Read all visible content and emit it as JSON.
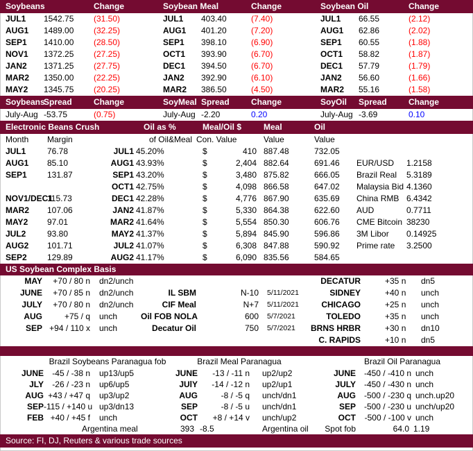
{
  "colors": {
    "maroon": "#740b31",
    "red": "#ff0000",
    "blue": "#0000ff"
  },
  "futures_boards": [
    {
      "title": "Soybeans",
      "change_header": "Change",
      "rows": [
        {
          "m": "JUL1",
          "p": "1542.75",
          "c": "(31.50)"
        },
        {
          "m": "AUG1",
          "p": "1489.00",
          "c": "(32.25)"
        },
        {
          "m": "SEP1",
          "p": "1410.00",
          "c": "(28.50)"
        },
        {
          "m": "NOV1",
          "p": "1372.25",
          "c": "(27.25)"
        },
        {
          "m": "JAN2",
          "p": "1371.25",
          "c": "(27.75)"
        },
        {
          "m": "MAR2",
          "p": "1350.00",
          "c": "(22.25)"
        },
        {
          "m": "MAY2",
          "p": "1345.75",
          "c": "(20.25)"
        }
      ]
    },
    {
      "title": "Soybean Meal",
      "change_header": "Change",
      "rows": [
        {
          "m": "JUL1",
          "p": "403.40",
          "c": "(7.40)"
        },
        {
          "m": "AUG1",
          "p": "401.20",
          "c": "(7.20)"
        },
        {
          "m": "SEP1",
          "p": "398.10",
          "c": "(6.90)"
        },
        {
          "m": "OCT1",
          "p": "393.90",
          "c": "(6.70)"
        },
        {
          "m": "DEC1",
          "p": "394.50",
          "c": "(6.70)"
        },
        {
          "m": "JAN2",
          "p": "392.90",
          "c": "(6.10)"
        },
        {
          "m": "MAR2",
          "p": "386.50",
          "c": "(4.50)"
        }
      ]
    },
    {
      "title": "Soybean Oil",
      "change_header": "Change",
      "rows": [
        {
          "m": "JUL1",
          "p": "66.55",
          "c": "(2.12)"
        },
        {
          "m": "AUG1",
          "p": "62.86",
          "c": "(2.02)"
        },
        {
          "m": "SEP1",
          "p": "60.55",
          "c": "(1.88)"
        },
        {
          "m": "OCT1",
          "p": "58.82",
          "c": "(1.87)"
        },
        {
          "m": "DEC1",
          "p": "57.79",
          "c": "(1.79)"
        },
        {
          "m": "JAN2",
          "p": "56.60",
          "c": "(1.66)"
        },
        {
          "m": "MAR2",
          "p": "55.16",
          "c": "(1.58)"
        }
      ]
    }
  ],
  "spread_boards": [
    {
      "title": "Soybeans",
      "spread_header": "Spread",
      "change_header": "Change",
      "month": "July-Aug",
      "spread": "-53.75",
      "change": "(0.75)",
      "change_class": "red"
    },
    {
      "title": "SoyMeal",
      "spread_header": "Spread",
      "change_header": "Change",
      "month": "July-Aug",
      "spread": "-2.20",
      "change": "0.20",
      "change_class": "blue"
    },
    {
      "title": "SoyOil",
      "spread_header": "Spread",
      "change_header": "Change",
      "month": "July-Aug",
      "spread": "-3.69",
      "change": "0.10",
      "change_class": "blue"
    }
  ],
  "crush": {
    "title": "Electronic Beans Crush",
    "col_headers": {
      "oil_pct": "Oil as %",
      "meal_oil": "Meal/Oil $",
      "meal": "Meal",
      "oil": "Oil"
    },
    "sub_headers": {
      "month": "Month",
      "margin": "Margin",
      "of_oilmeal": "of Oil&Meal",
      "con_value": "Con. Value",
      "meal_value": "Value",
      "oil_value": "Value"
    },
    "rows": [
      {
        "month": "JUL1",
        "margin": "76.78",
        "cm": "JUL1",
        "pct": "45.20%",
        "ds": "$",
        "con": "410",
        "meal": "887.48",
        "oil": "732.05",
        "fx_label": "",
        "fx_value": ""
      },
      {
        "month": "AUG1",
        "margin": "85.10",
        "cm": "AUG1",
        "pct": "43.93%",
        "ds": "$",
        "con": "2,404",
        "meal": "882.64",
        "oil": "691.46",
        "fx_label": "EUR/USD",
        "fx_value": "1.2158"
      },
      {
        "month": "SEP1",
        "margin": "131.87",
        "cm": "SEP1",
        "pct": "43.20%",
        "ds": "$",
        "con": "3,480",
        "meal": "875.82",
        "oil": "666.05",
        "fx_label": "Brazil Real",
        "fx_value": "5.3189"
      },
      {
        "month": "",
        "margin": "",
        "cm": "OCT1",
        "pct": "42.75%",
        "ds": "$",
        "con": "4,098",
        "meal": "866.58",
        "oil": "647.02",
        "fx_label": "Malaysia Bid",
        "fx_value": "4.1360"
      },
      {
        "month": "NOV1/DEC1",
        "margin": "115.73",
        "cm": "DEC1",
        "pct": "42.28%",
        "ds": "$",
        "con": "4,776",
        "meal": "867.90",
        "oil": "635.69",
        "fx_label": "China RMB",
        "fx_value": "6.4342"
      },
      {
        "month": "MAR2",
        "margin": "107.06",
        "cm": "JAN2",
        "pct": "41.87%",
        "ds": "$",
        "con": "5,330",
        "meal": "864.38",
        "oil": "622.60",
        "fx_label": "AUD",
        "fx_value": "0.7711"
      },
      {
        "month": "MAY2",
        "margin": "97.01",
        "cm": "MAR2",
        "pct": "41.64%",
        "ds": "$",
        "con": "5,554",
        "meal": "850.30",
        "oil": "606.76",
        "fx_label": "CME Bitcoin",
        "fx_value": "38230"
      },
      {
        "month": "JUL2",
        "margin": "93.80",
        "cm": "MAY2",
        "pct": "41.37%",
        "ds": "$",
        "con": "5,894",
        "meal": "845.90",
        "oil": "596.86",
        "fx_label": "3M Libor",
        "fx_value": "0.14925"
      },
      {
        "month": "AUG2",
        "margin": "101.71",
        "cm": "JUL2",
        "pct": "41.07%",
        "ds": "$",
        "con": "6,308",
        "meal": "847.88",
        "oil": "590.92",
        "fx_label": "Prime rate",
        "fx_value": "3.2500"
      },
      {
        "month": "SEP2",
        "margin": "129.89",
        "cm": "AUG2",
        "pct": "41.17%",
        "ds": "$",
        "con": "6,090",
        "meal": "835.56",
        "oil": "584.65",
        "fx_label": "",
        "fx_value": ""
      }
    ]
  },
  "basis": {
    "title": "US Soybean Complex Basis",
    "rows": [
      {
        "month": "MAY",
        "basis": "+70 / 80 n",
        "chg": "dn2/unch",
        "mid_label": "",
        "mid_value": "",
        "date": "",
        "loc": "DECATUR",
        "loc_basis": "+35 n",
        "loc_chg": "dn5"
      },
      {
        "month": "JUNE",
        "basis": "+70 / 85 n",
        "chg": "dn2/unch",
        "mid_label": "IL SBM",
        "mid_value": "N-10",
        "date": "5/11/2021",
        "loc": "SIDNEY",
        "loc_basis": "+40 n",
        "loc_chg": "unch"
      },
      {
        "month": "JULY",
        "basis": "+70 / 80 n",
        "chg": "dn2/unch",
        "mid_label": "CIF Meal",
        "mid_value": "N+7",
        "date": "5/11/2021",
        "loc": "CHICAGO",
        "loc_basis": "+25 n",
        "loc_chg": "unch"
      },
      {
        "month": "AUG",
        "basis": "+75 / q",
        "chg": "unch",
        "mid_label": "Oil FOB NOLA",
        "mid_value": "600",
        "date": "5/7/2021",
        "loc": "TOLEDO",
        "loc_basis": "+35 n",
        "loc_chg": "unch"
      },
      {
        "month": "SEP",
        "basis": "+94 / 110 x",
        "chg": "unch",
        "mid_label": "Decatur Oil",
        "mid_value": "750",
        "date": "5/7/2021",
        "loc": "BRNS HRBR",
        "loc_basis": "+30 n",
        "loc_chg": "dn10"
      },
      {
        "month": "",
        "basis": "",
        "chg": "",
        "mid_label": "",
        "mid_value": "",
        "date": "",
        "loc": "C. RAPIDS",
        "loc_basis": "+10 n",
        "loc_chg": "dn5"
      }
    ]
  },
  "brazil": {
    "groups": [
      {
        "title": "Brazil Soybeans Paranagua fob",
        "rows": [
          {
            "m": "JUNE",
            "b": "-45 / -38 n",
            "c": "up13/up5"
          },
          {
            "m": "JLY",
            "b": "-26 / -23 n",
            "c": "up6/up5"
          },
          {
            "m": "AUG",
            "b": "+43 / +47 q",
            "c": "up3/up2"
          },
          {
            "m": "SEP",
            "b": "-115 / +140 u",
            "c": "up3/dn13"
          },
          {
            "m": "FEB",
            "b": "+40 / +45 f",
            "c": "unch"
          }
        ]
      },
      {
        "title": "Brazil Meal Paranagua",
        "rows": [
          {
            "m": "JUNE",
            "b": "-13 / -11 n",
            "c": "up2/up2"
          },
          {
            "m": "JUlY",
            "b": "-14 / -12 n",
            "c": "up2/up1"
          },
          {
            "m": "AUG",
            "b": "-8 / -5 q",
            "c": "unch/dn1"
          },
          {
            "m": "SEP",
            "b": "-8 / -5 u",
            "c": "unch/dn1"
          },
          {
            "m": "OCT",
            "b": "+8 / +14 v",
            "c": "unch/up2"
          }
        ]
      },
      {
        "title": "Brazil Oil Paranagua",
        "rows": [
          {
            "m": "JUNE",
            "b": "-450 / -410 n",
            "c": "unch"
          },
          {
            "m": "JULY",
            "b": "-450 / -430 n",
            "c": "unch"
          },
          {
            "m": "AUG",
            "b": "-500 / -230 q",
            "c": "unch.up20"
          },
          {
            "m": "SEP",
            "b": "-500 / -230 u",
            "c": "unch/up20"
          },
          {
            "m": "OCT",
            "b": "-500 / -100 v",
            "c": "unch"
          }
        ]
      }
    ],
    "footer": {
      "argentina_meal_label": "Argentina meal",
      "argentina_meal_price": "393",
      "argentina_meal_change": "-8.5",
      "argentina_oil_label": "Argentina oil",
      "spot_fob_label": "Spot fob",
      "argentina_oil_price": "64.0",
      "argentina_oil_change": "1.19"
    }
  },
  "source": "Source: FI, DJ, Reuters & various trade sources"
}
